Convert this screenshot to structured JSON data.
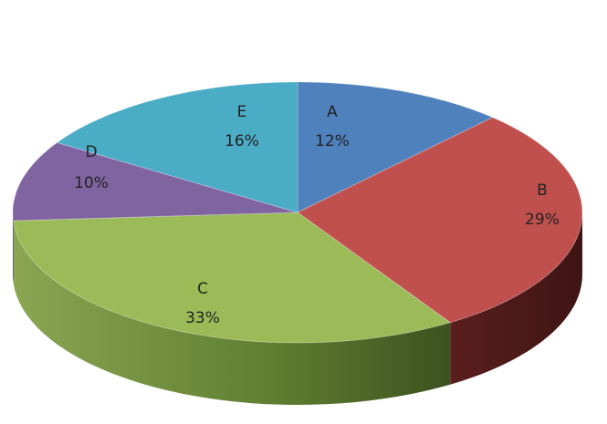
{
  "chart_data": {
    "type": "pie",
    "style": "3d",
    "title": "",
    "legend": "none",
    "categories": [
      "A",
      "B",
      "C",
      "D",
      "E"
    ],
    "values": [
      12,
      29,
      33,
      10,
      16
    ],
    "value_labels": [
      "12%",
      "29%",
      "33%",
      "10%",
      "16%"
    ],
    "colors": [
      "#4f81bd",
      "#c0504d",
      "#9bbb59",
      "#8064a2",
      "#4bacc6"
    ],
    "side_colors": [
      "#2f4f7a",
      "#5a1e1c",
      "#4e6a24",
      "#4a3366",
      "#27697a"
    ],
    "start": "top",
    "direction": "clockwise"
  }
}
